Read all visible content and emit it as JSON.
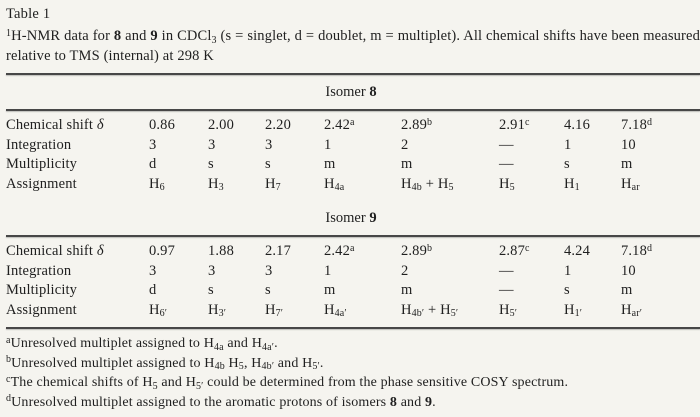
{
  "table_label": "Table 1",
  "caption": "^{1}H-NMR data for **8** and **9** in CDCl_{3} (s = singlet, d = doublet, m = multiplet). All chemical shifts have been measured relative to TMS (internal) at 298 K",
  "sections": [
    {
      "title": "Isomer **8**",
      "rows": [
        {
          "label": "Chemical shift *δ*",
          "cells": [
            "0.86",
            "2.00",
            "2.20",
            "2.42^{a}",
            "2.89^{b}",
            "2.91^{c}",
            "4.16",
            "7.18^{d}"
          ]
        },
        {
          "label": "Integration",
          "cells": [
            "3",
            "3",
            "3",
            "1",
            "2",
            "—",
            "1",
            "10"
          ]
        },
        {
          "label": "Multiplicity",
          "cells": [
            "d",
            "s",
            "s",
            "m",
            "m",
            "—",
            "s",
            "m"
          ]
        },
        {
          "label": "Assignment",
          "cells": [
            "H_{6}",
            "H_{3}",
            "H_{7}",
            "H_{4a}",
            "H_{4b} + H_{5}",
            "H_{5}",
            "H_{1}",
            "H_{ar}"
          ]
        }
      ]
    },
    {
      "title": "Isomer **9**",
      "rows": [
        {
          "label": "Chemical shift *δ*",
          "cells": [
            "0.97",
            "1.88",
            "2.17",
            "2.42^{a}",
            "2.89^{b}",
            "2.87^{c}",
            "4.24",
            "7.18^{d}"
          ]
        },
        {
          "label": "Integration",
          "cells": [
            "3",
            "3",
            "3",
            "1",
            "2",
            "—",
            "1",
            "10"
          ]
        },
        {
          "label": "Multiplicity",
          "cells": [
            "d",
            "s",
            "s",
            "m",
            "m",
            "—",
            "s",
            "m"
          ]
        },
        {
          "label": "Assignment",
          "cells": [
            "H_{6′}",
            "H_{3′}",
            "H_{7′}",
            "H_{4a′}",
            "H_{4b′} + H_{5′}",
            "H_{5′}",
            "H_{1′}",
            "H_{ar′}"
          ]
        }
      ]
    }
  ],
  "footnotes": [
    "^{a}Unresolved multiplet assigned to H_{4a} and H_{4a′}.",
    "^{b}Unresolved multiplet assigned to H_{4b} H_{5}, H_{4b′} and H_{5′}.",
    "^{c}The chemical shifts of H_{5} and H_{5′} could be determined from the phase sensitive COSY spectrum.",
    "^{d}Unresolved multiplet assigned to the aromatic protons of isomers **8** and **9**."
  ],
  "colors": {
    "page_background": "#f5f4ef",
    "ink": "#1f1f1f",
    "rule": "#474747"
  }
}
